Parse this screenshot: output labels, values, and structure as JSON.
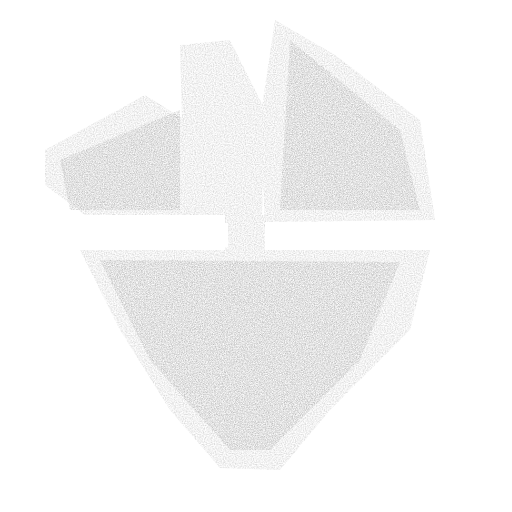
{
  "emblem": {
    "icon": "grunge-shield-emblem-icon",
    "ink_color": "#cfcfcf",
    "ink_dark": "#9a9a9a",
    "background": "#ffffff"
  }
}
